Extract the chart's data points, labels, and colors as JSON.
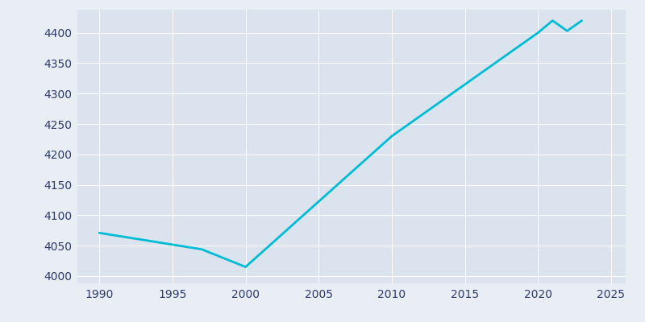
{
  "years": [
    1990,
    1997,
    2000,
    2010,
    2020,
    2021,
    2022,
    2023
  ],
  "population": [
    4071,
    4044,
    4015,
    4230,
    4400,
    4420,
    4403,
    4420
  ],
  "line_color": "#00BCD4",
  "background_color": "#E8EEF4",
  "plot_bg_color": "#DAE3EE",
  "text_color": "#2d3a6b",
  "ylim": [
    3988,
    4438
  ],
  "xlim": [
    1988.5,
    2026
  ],
  "yticks": [
    4000,
    4050,
    4100,
    4150,
    4200,
    4250,
    4300,
    4350,
    4400
  ],
  "xticks": [
    1990,
    1995,
    2000,
    2005,
    2010,
    2015,
    2020,
    2025
  ],
  "line_width": 2.0,
  "figsize": [
    8.0,
    4.0
  ],
  "dpi": 100
}
